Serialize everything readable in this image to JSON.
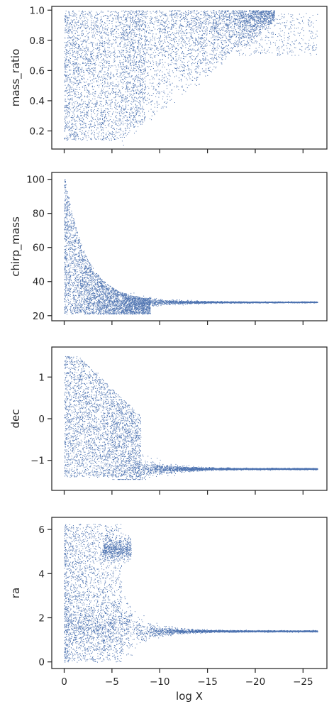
{
  "chart_data": [
    {
      "type": "scatter",
      "ylabel": "mass_ratio",
      "xlabel": "",
      "xlim": [
        1.3,
        -27.5
      ],
      "ylim": [
        0.08,
        1.025
      ],
      "yticks": [
        0.2,
        0.4,
        0.6,
        0.8,
        1.0
      ],
      "ytick_labels": [
        "0.2",
        "0.4",
        "0.6",
        "0.8",
        "1.0"
      ],
      "xticks": [
        0,
        -5,
        -10,
        -15,
        -20,
        -25
      ],
      "xtick_labels": [],
      "color": "#4c72b0",
      "distribution": "q",
      "points": [
        [
          -0.2,
          0.15
        ],
        [
          -0.5,
          0.98
        ],
        [
          -1.2,
          0.62
        ],
        [
          -2.0,
          0.35
        ],
        [
          -2.8,
          0.9
        ],
        [
          -3.5,
          0.25
        ],
        [
          -4.2,
          0.55
        ],
        [
          -5.0,
          0.18
        ],
        [
          -5.8,
          0.78
        ],
        [
          -6.5,
          0.4
        ],
        [
          -7.5,
          0.2
        ],
        [
          -8.5,
          0.5
        ],
        [
          -9.5,
          0.7
        ],
        [
          -10.5,
          0.45
        ],
        [
          -11.5,
          0.85
        ],
        [
          -12.5,
          0.6
        ],
        [
          -13.5,
          0.95
        ],
        [
          -14.5,
          0.75
        ],
        [
          -15.5,
          0.88
        ],
        [
          -16.5,
          0.7
        ],
        [
          -17.5,
          0.95
        ],
        [
          -18.5,
          0.82
        ],
        [
          -19.5,
          0.9
        ],
        [
          -20.5,
          0.86
        ],
        [
          -21.5,
          0.92
        ],
        [
          -23,
          0.9
        ],
        [
          -24.5,
          0.92
        ],
        [
          -26,
          0.85
        ]
      ]
    },
    {
      "type": "scatter",
      "ylabel": "chirp_mass",
      "xlabel": "",
      "xlim": [
        1.3,
        -27.5
      ],
      "ylim": [
        17,
        104
      ],
      "yticks": [
        20,
        40,
        60,
        80,
        100
      ],
      "ytick_labels": [
        "20",
        "40",
        "60",
        "80",
        "100"
      ],
      "xticks": [
        0,
        -5,
        -10,
        -15,
        -20,
        -25
      ],
      "xtick_labels": [],
      "color": "#4c72b0",
      "distribution": "mc",
      "points": [
        [
          -0.1,
          99
        ],
        [
          -0.3,
          85
        ],
        [
          -0.8,
          70
        ],
        [
          -1.5,
          55
        ],
        [
          -2.5,
          48
        ],
        [
          -3.5,
          42
        ],
        [
          -4.5,
          36
        ],
        [
          -5.5,
          33
        ],
        [
          -6.5,
          30
        ],
        [
          -7.5,
          29
        ],
        [
          -8.5,
          28.5
        ],
        [
          -10,
          29
        ],
        [
          -12,
          28.8
        ],
        [
          -14,
          28.6
        ],
        [
          -16,
          28.4
        ],
        [
          -18,
          28.3
        ],
        [
          -20,
          28.2
        ],
        [
          -22,
          28.2
        ],
        [
          -24,
          28.1
        ],
        [
          -26.5,
          28
        ]
      ]
    },
    {
      "type": "scatter",
      "ylabel": "dec",
      "xlabel": "",
      "xlim": [
        1.3,
        -27.5
      ],
      "ylim": [
        -1.72,
        1.72
      ],
      "yticks": [
        -1,
        0,
        1
      ],
      "ytick_labels": [
        "−1",
        "0",
        "1"
      ],
      "xticks": [
        0,
        -5,
        -10,
        -15,
        -20,
        -25
      ],
      "xtick_labels": [],
      "color": "#4c72b0",
      "distribution": "dec",
      "points": [
        [
          -0.1,
          1.5
        ],
        [
          -0.5,
          -1.3
        ],
        [
          -1.5,
          0.8
        ],
        [
          -2.5,
          -0.5
        ],
        [
          -3.5,
          1.1
        ],
        [
          -4.5,
          0.2
        ],
        [
          -5.5,
          -0.2
        ],
        [
          -6.5,
          -1.0
        ],
        [
          -7.5,
          -0.8
        ],
        [
          -8.5,
          -1.05
        ],
        [
          -10,
          -1.1
        ],
        [
          -12,
          -1.15
        ],
        [
          -14,
          -1.18
        ],
        [
          -16,
          -1.2
        ],
        [
          -18,
          -1.2
        ],
        [
          -20,
          -1.2
        ],
        [
          -22,
          -1.21
        ],
        [
          -24,
          -1.21
        ],
        [
          -26.5,
          -1.21
        ]
      ]
    },
    {
      "type": "scatter",
      "ylabel": "ra",
      "xlabel": "log X",
      "xlim": [
        1.3,
        -27.5
      ],
      "ylim": [
        -0.3,
        6.55
      ],
      "yticks": [
        0,
        2,
        4,
        6
      ],
      "ytick_labels": [
        "0",
        "2",
        "4",
        "6"
      ],
      "xticks": [
        0,
        -5,
        -10,
        -15,
        -20,
        -25
      ],
      "xtick_labels": [
        "0",
        "−5",
        "−10",
        "−15",
        "−20",
        "−25"
      ],
      "color": "#4c72b0",
      "distribution": "ra",
      "points": [
        [
          -0.1,
          6.2
        ],
        [
          -0.5,
          0.1
        ],
        [
          -1.5,
          3.5
        ],
        [
          -2.5,
          1.0
        ],
        [
          -3.5,
          5.5
        ],
        [
          -4.5,
          2.5
        ],
        [
          -5.5,
          5.4
        ],
        [
          -6.5,
          5.2
        ],
        [
          -6.5,
          2.3
        ],
        [
          -7.5,
          1.8
        ],
        [
          -9,
          1.55
        ],
        [
          -11,
          1.45
        ],
        [
          -13,
          1.42
        ],
        [
          -15,
          1.4
        ],
        [
          -17,
          1.4
        ],
        [
          -19,
          1.39
        ],
        [
          -21,
          1.39
        ],
        [
          -23,
          1.38
        ],
        [
          -26.5,
          1.38
        ]
      ]
    }
  ]
}
